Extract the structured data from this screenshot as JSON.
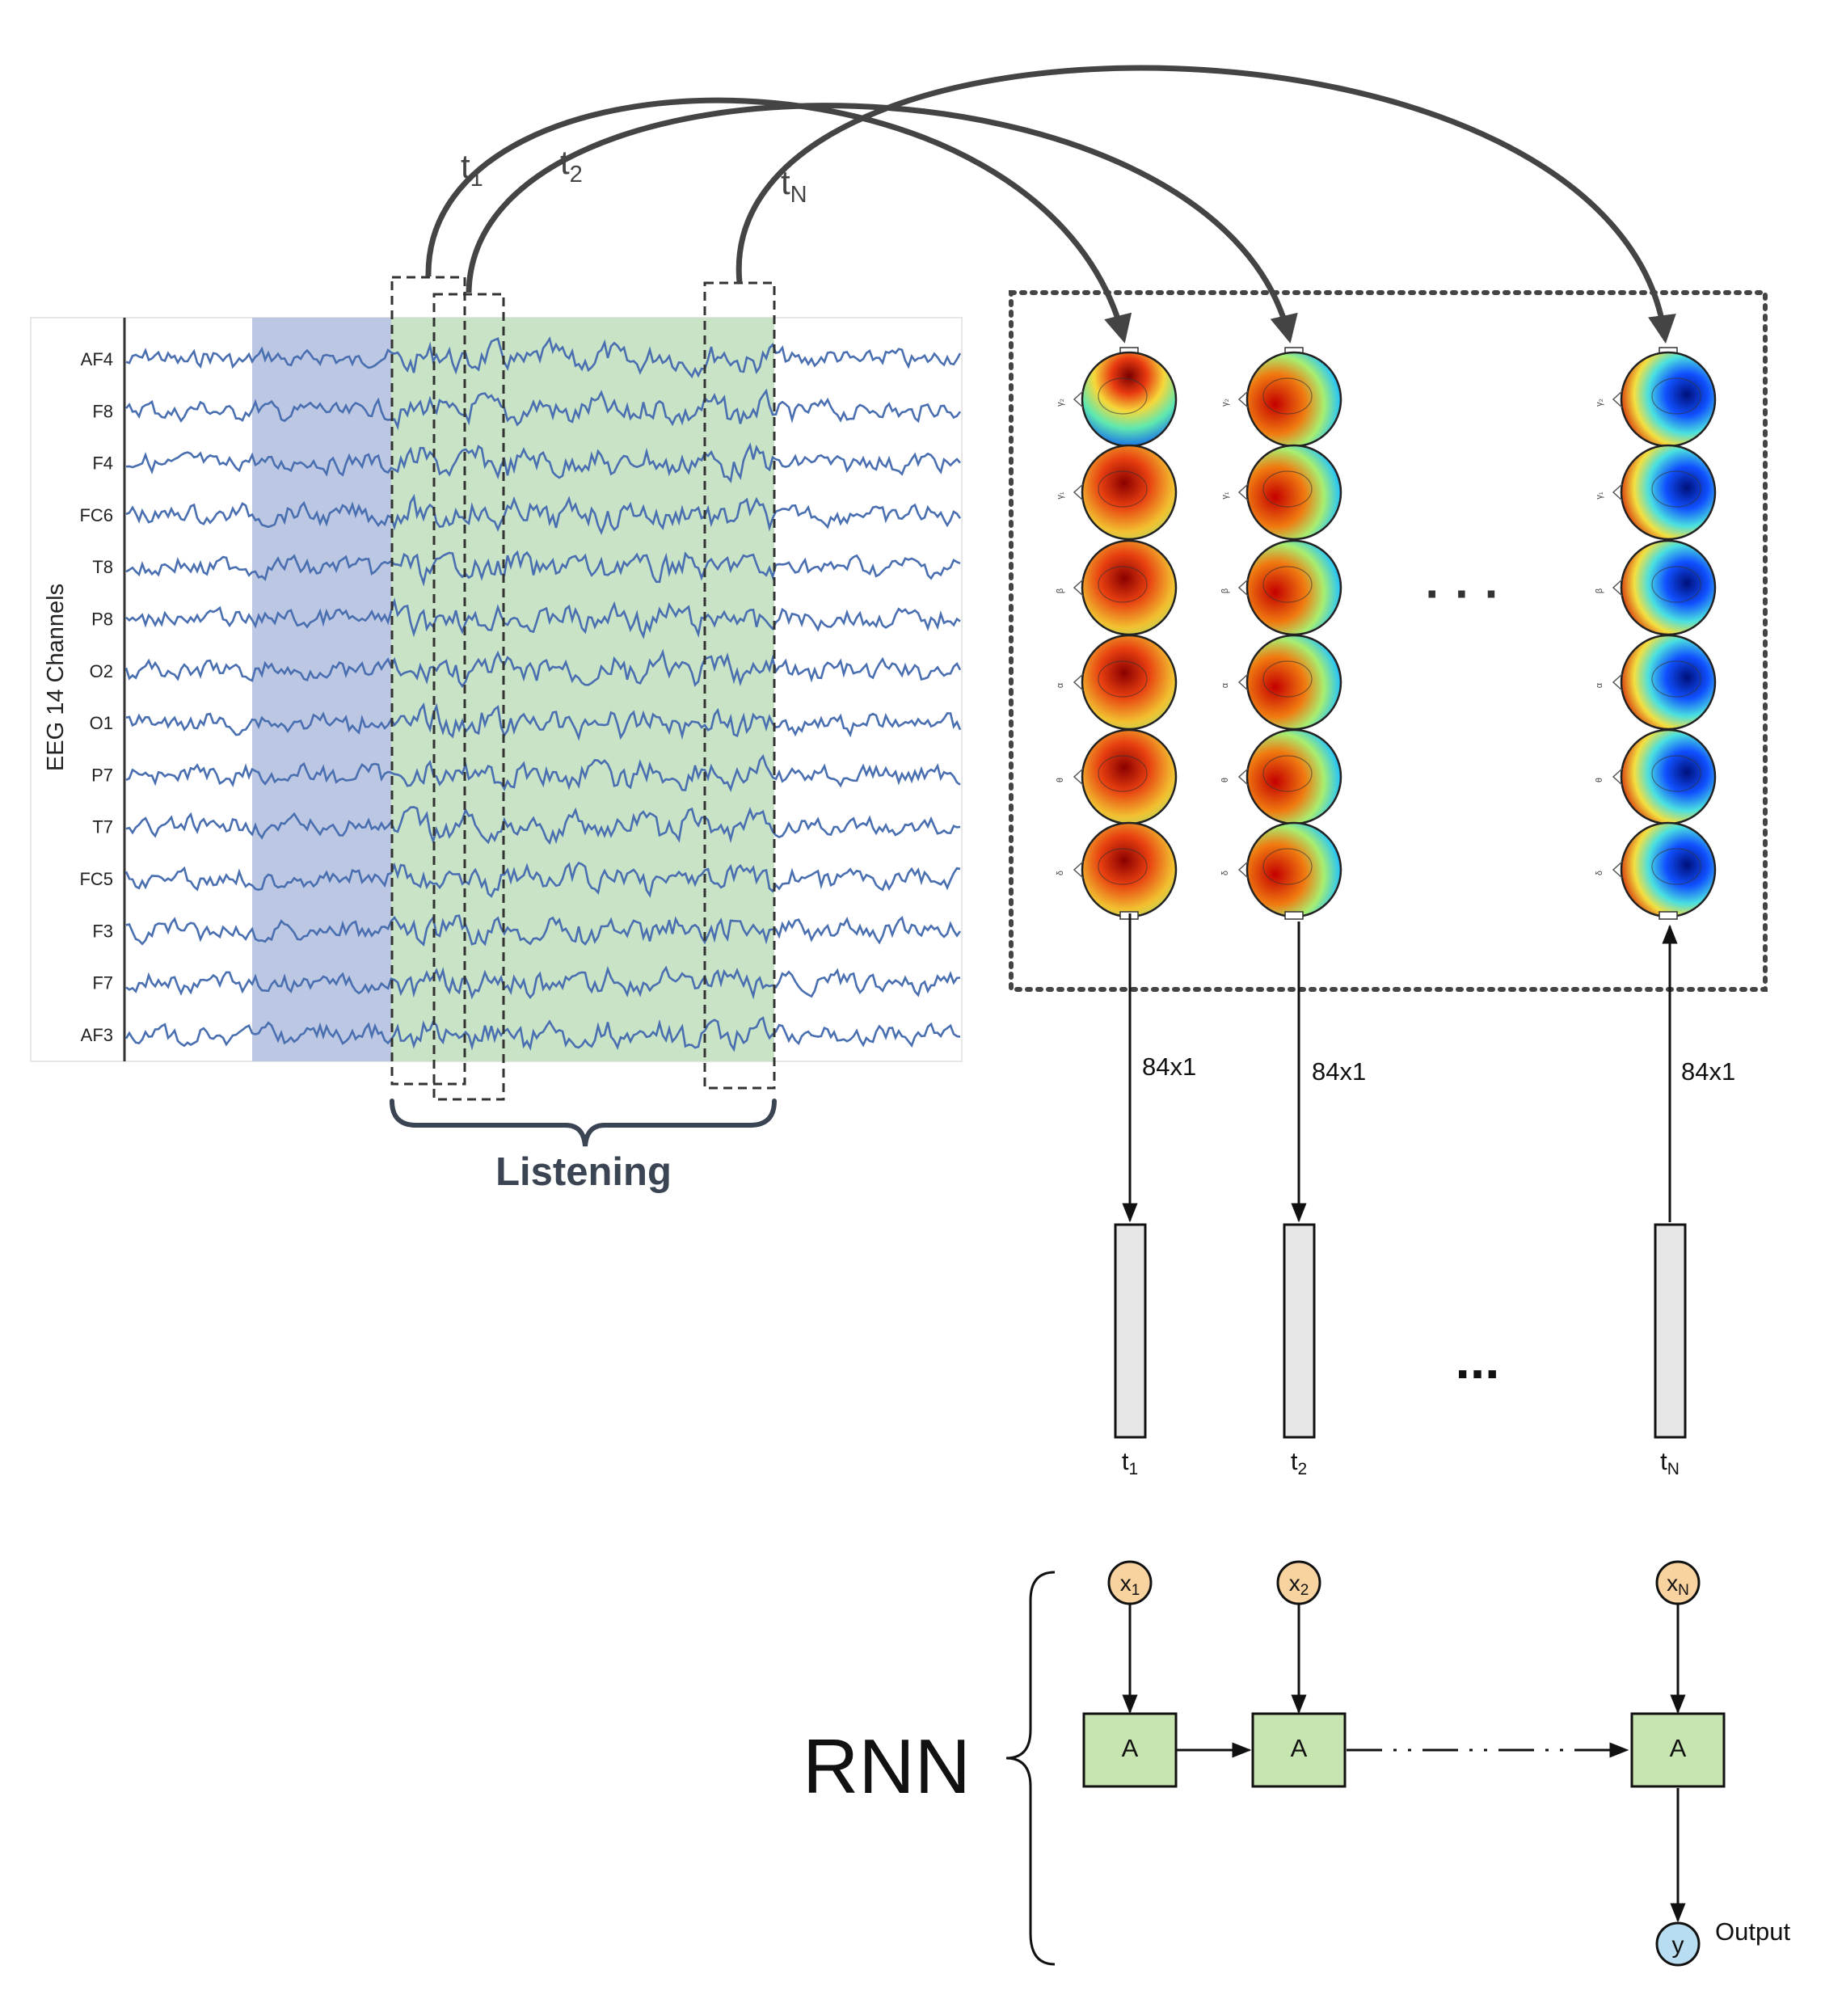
{
  "eeg": {
    "axis_label": "EEG 14 Channels",
    "channels": [
      "AF4",
      "F8",
      "F4",
      "FC6",
      "T8",
      "P8",
      "O2",
      "O1",
      "P7",
      "T7",
      "FC5",
      "F3",
      "F7",
      "AF3"
    ],
    "region_label": "Listening",
    "trace_color": "#4a6fb0",
    "baseline_region_color": "#bcc8e3",
    "listening_region_color": "#c9e3c7"
  },
  "windows": [
    {
      "label": "t",
      "sub": "1"
    },
    {
      "label": "t",
      "sub": "2"
    },
    {
      "label": "t",
      "sub": "N"
    }
  ],
  "topo": {
    "band_labels": [
      "γ₂",
      "γ₁",
      "β",
      "α",
      "θ",
      "δ"
    ],
    "ellipsis": "· · ·"
  },
  "vectors": {
    "dim_label": "84x1",
    "labels": [
      {
        "label": "t",
        "sub": "1"
      },
      {
        "label": "t",
        "sub": "2"
      },
      {
        "label": "t",
        "sub": "N"
      }
    ],
    "ellipsis": "..."
  },
  "rnn": {
    "title": "RNN",
    "cell_label": "A",
    "inputs": [
      {
        "label": "x",
        "sub": "1"
      },
      {
        "label": "x",
        "sub": "2"
      },
      {
        "label": "x",
        "sub": "N"
      }
    ],
    "output_node": "y",
    "output_label": "Output",
    "cell_color": "#c6e5b0",
    "input_color": "#f8d3a0",
    "output_color": "#b8dcf0"
  }
}
